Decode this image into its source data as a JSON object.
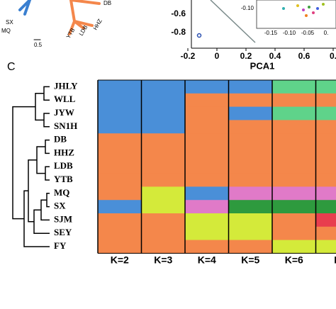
{
  "tree_panel": {
    "labels": [
      "SX",
      "MQ",
      "YTB",
      "LDB",
      "HHZ",
      "DB"
    ],
    "scale": "0.5"
  },
  "pca_panel": {
    "yticks": [
      "-0.6",
      "-0.8"
    ],
    "xticks": [
      "-0.2",
      "0",
      "0.2",
      "0.4",
      "0.6",
      "0."
    ],
    "xlabel": "PCA1",
    "inset_yticks": [
      "-0.10"
    ],
    "inset_xticks": [
      "-0.15",
      "-0.10",
      "-0.05",
      "0."
    ]
  },
  "panel_c": {
    "label": "C",
    "rows": [
      "JHLY",
      "WLL",
      "JYW",
      "SN1H",
      "DB",
      "HHZ",
      "LDB",
      "YTB",
      "MQ",
      "SX",
      "SJM",
      "SEY",
      "FY"
    ],
    "columns": [
      {
        "label": "K=2",
        "colors": [
          "#4a8fd8",
          "#4a8fd8",
          "#4a8fd8",
          "#4a8fd8",
          "#f4874b",
          "#f4874b",
          "#f4874b",
          "#f4874b",
          "#f4874b",
          "#4a8fd8",
          "#f4874b",
          "#f4874b",
          "#f4874b"
        ]
      },
      {
        "label": "K=3",
        "colors": [
          "#4a8fd8",
          "#4a8fd8",
          "#4a8fd8",
          "#4a8fd8",
          "#f4874b",
          "#f4874b",
          "#f4874b",
          "#f4874b",
          "#d4ea3a",
          "#d4ea3a",
          "#f4874b",
          "#f4874b",
          "#f4874b"
        ]
      },
      {
        "label": "K=4",
        "colors": [
          "#4a8fd8",
          "#f4874b",
          "#f4874b",
          "#f4874b",
          "#f4874b",
          "#f4874b",
          "#f4874b",
          "#f4874b",
          "#4a8fd8",
          "#e07ac8",
          "#d4ea3a",
          "#d4ea3a",
          "#f4874b"
        ]
      },
      {
        "label": "K=5",
        "colors": [
          "#4a8fd8",
          "#f4874b",
          "#4a8fd8",
          "#f4874b",
          "#f4874b",
          "#f4874b",
          "#f4874b",
          "#f4874b",
          "#e07ac8",
          "#2e9a3e",
          "#d4ea3a",
          "#d4ea3a",
          "#f4874b"
        ]
      },
      {
        "label": "K=6",
        "colors": [
          "#5fd38a",
          "#f4874b",
          "#5fd38a",
          "#f4874b",
          "#f4874b",
          "#f4874b",
          "#f4874b",
          "#f4874b",
          "#e07ac8",
          "#2e9a3e",
          "#f4874b",
          "#f4874b",
          "#d4ea3a"
        ]
      },
      {
        "label": "K",
        "colors": [
          "#5fd38a",
          "#f4874b",
          "#5fd38a",
          "#f4874b",
          "#f4874b",
          "#f4874b",
          "#f4874b",
          "#f4874b",
          "#e07ac8",
          "#2e9a3e",
          "#e83e4e",
          "#f4874b",
          "#d4ea3a"
        ]
      }
    ]
  }
}
